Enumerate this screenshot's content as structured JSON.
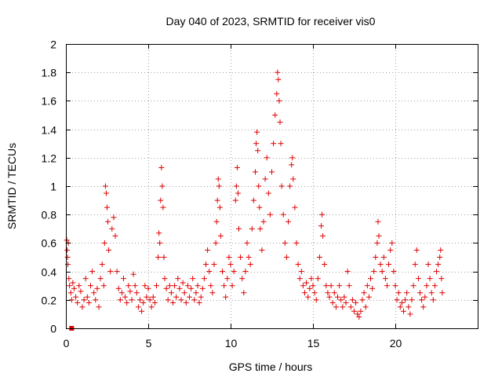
{
  "chart_data": {
    "type": "scatter",
    "title": "Day 040 of 2023, SRMTID for receiver vis0",
    "xlabel": "GPS time / hours",
    "ylabel": "SRMTID / TECUs",
    "xlim": [
      0,
      25
    ],
    "ylim": [
      0,
      2
    ],
    "xticks": [
      0,
      5,
      10,
      15,
      20
    ],
    "xtick_labels": [
      "0",
      "5",
      "10",
      "15",
      "20"
    ],
    "yticks": [
      0,
      0.2,
      0.4,
      0.6,
      0.8,
      1,
      1.2,
      1.4,
      1.6,
      1.8,
      2
    ],
    "ytick_labels": [
      "0",
      "0.2",
      "0.4",
      "0.6",
      "0.8",
      "1",
      "1.2",
      "1.4",
      "1.6",
      "1.8",
      "2"
    ],
    "grid": true,
    "marker": "+",
    "color": "#e00000",
    "series": [
      {
        "name": "vis0",
        "points": [
          [
            0.05,
            0.62
          ],
          [
            0.08,
            0.55
          ],
          [
            0.1,
            0.5
          ],
          [
            0.12,
            0.45
          ],
          [
            0.15,
            0.6
          ],
          [
            0.18,
            0.35
          ],
          [
            0.22,
            0.3
          ],
          [
            0.3,
            0.25
          ],
          [
            0.35,
            0.2
          ],
          [
            0.42,
            0.32
          ],
          [
            0.5,
            0.28
          ],
          [
            0.6,
            0.22
          ],
          [
            0.7,
            0.18
          ],
          [
            0.8,
            0.3
          ],
          [
            0.9,
            0.26
          ],
          [
            1.0,
            0.15
          ],
          [
            1.1,
            0.2
          ],
          [
            1.2,
            0.35
          ],
          [
            1.3,
            0.22
          ],
          [
            1.4,
            0.18
          ],
          [
            1.5,
            0.3
          ],
          [
            1.6,
            0.4
          ],
          [
            1.7,
            0.25
          ],
          [
            1.8,
            0.2
          ],
          [
            1.9,
            0.28
          ],
          [
            2.0,
            0.15
          ],
          [
            2.1,
            0.35
          ],
          [
            2.2,
            0.45
          ],
          [
            2.3,
            0.3
          ],
          [
            2.35,
            0.6
          ],
          [
            2.4,
            1.0
          ],
          [
            2.45,
            0.95
          ],
          [
            2.5,
            0.85
          ],
          [
            2.55,
            0.75
          ],
          [
            2.6,
            0.55
          ],
          [
            2.7,
            0.4
          ],
          [
            2.8,
            0.7
          ],
          [
            2.9,
            0.78
          ],
          [
            3.0,
            0.65
          ],
          [
            3.1,
            0.4
          ],
          [
            3.2,
            0.28
          ],
          [
            3.3,
            0.2
          ],
          [
            3.4,
            0.25
          ],
          [
            3.5,
            0.35
          ],
          [
            3.6,
            0.22
          ],
          [
            3.7,
            0.18
          ],
          [
            3.8,
            0.3
          ],
          [
            3.9,
            0.26
          ],
          [
            4.0,
            0.2
          ],
          [
            4.1,
            0.38
          ],
          [
            4.2,
            0.3
          ],
          [
            4.3,
            0.25
          ],
          [
            4.4,
            0.15
          ],
          [
            4.5,
            0.2
          ],
          [
            4.6,
            0.12
          ],
          [
            4.7,
            0.18
          ],
          [
            4.8,
            0.3
          ],
          [
            4.9,
            0.22
          ],
          [
            5.0,
            0.28
          ],
          [
            5.1,
            0.2
          ],
          [
            5.2,
            0.15
          ],
          [
            5.3,
            0.22
          ],
          [
            5.4,
            0.18
          ],
          [
            5.5,
            0.3
          ],
          [
            5.6,
            0.5
          ],
          [
            5.65,
            0.67
          ],
          [
            5.7,
            0.6
          ],
          [
            5.75,
            0.9
          ],
          [
            5.8,
            1.13
          ],
          [
            5.85,
            1.0
          ],
          [
            5.9,
            0.85
          ],
          [
            5.95,
            0.5
          ],
          [
            6.0,
            0.35
          ],
          [
            6.1,
            0.28
          ],
          [
            6.2,
            0.2
          ],
          [
            6.3,
            0.3
          ],
          [
            6.4,
            0.25
          ],
          [
            6.5,
            0.18
          ],
          [
            6.6,
            0.3
          ],
          [
            6.7,
            0.22
          ],
          [
            6.8,
            0.35
          ],
          [
            6.9,
            0.28
          ],
          [
            7.0,
            0.2
          ],
          [
            7.1,
            0.32
          ],
          [
            7.2,
            0.25
          ],
          [
            7.3,
            0.18
          ],
          [
            7.4,
            0.3
          ],
          [
            7.5,
            0.22
          ],
          [
            7.6,
            0.28
          ],
          [
            7.7,
            0.35
          ],
          [
            7.8,
            0.2
          ],
          [
            7.9,
            0.25
          ],
          [
            8.0,
            0.3
          ],
          [
            8.1,
            0.18
          ],
          [
            8.2,
            0.22
          ],
          [
            8.3,
            0.28
          ],
          [
            8.4,
            0.35
          ],
          [
            8.5,
            0.45
          ],
          [
            8.6,
            0.55
          ],
          [
            8.7,
            0.4
          ],
          [
            8.8,
            0.3
          ],
          [
            8.9,
            0.25
          ],
          [
            9.0,
            0.45
          ],
          [
            9.1,
            0.6
          ],
          [
            9.15,
            0.75
          ],
          [
            9.2,
            0.9
          ],
          [
            9.25,
            1.05
          ],
          [
            9.3,
            1.0
          ],
          [
            9.35,
            0.85
          ],
          [
            9.4,
            0.65
          ],
          [
            9.5,
            0.4
          ],
          [
            9.6,
            0.3
          ],
          [
            9.7,
            0.22
          ],
          [
            9.8,
            0.35
          ],
          [
            9.9,
            0.5
          ],
          [
            10.0,
            0.45
          ],
          [
            10.1,
            0.3
          ],
          [
            10.2,
            0.4
          ],
          [
            10.3,
            0.9
          ],
          [
            10.35,
            1.0
          ],
          [
            10.4,
            1.13
          ],
          [
            10.45,
            0.95
          ],
          [
            10.5,
            0.7
          ],
          [
            10.6,
            0.5
          ],
          [
            10.7,
            0.35
          ],
          [
            10.8,
            0.25
          ],
          [
            10.9,
            0.4
          ],
          [
            11.0,
            0.6
          ],
          [
            11.1,
            0.5
          ],
          [
            11.2,
            0.45
          ],
          [
            11.3,
            0.7
          ],
          [
            11.4,
            0.9
          ],
          [
            11.5,
            1.1
          ],
          [
            11.55,
            1.3
          ],
          [
            11.6,
            1.38
          ],
          [
            11.65,
            1.25
          ],
          [
            11.7,
            1.0
          ],
          [
            11.75,
            0.85
          ],
          [
            11.8,
            0.7
          ],
          [
            11.9,
            0.55
          ],
          [
            12.0,
            0.75
          ],
          [
            12.1,
            1.05
          ],
          [
            12.2,
            1.2
          ],
          [
            12.3,
            0.95
          ],
          [
            12.4,
            0.8
          ],
          [
            12.5,
            1.1
          ],
          [
            12.6,
            1.3
          ],
          [
            12.7,
            1.5
          ],
          [
            12.8,
            1.65
          ],
          [
            12.85,
            1.8
          ],
          [
            12.9,
            1.75
          ],
          [
            12.95,
            1.6
          ],
          [
            13.0,
            1.45
          ],
          [
            13.05,
            1.3
          ],
          [
            13.1,
            1.0
          ],
          [
            13.2,
            0.8
          ],
          [
            13.3,
            0.6
          ],
          [
            13.4,
            0.5
          ],
          [
            13.5,
            0.75
          ],
          [
            13.6,
            1.0
          ],
          [
            13.7,
            1.15
          ],
          [
            13.75,
            1.2
          ],
          [
            13.8,
            1.05
          ],
          [
            13.9,
            0.85
          ],
          [
            14.0,
            0.6
          ],
          [
            14.1,
            0.45
          ],
          [
            14.2,
            0.35
          ],
          [
            14.3,
            0.4
          ],
          [
            14.4,
            0.3
          ],
          [
            14.5,
            0.25
          ],
          [
            14.6,
            0.32
          ],
          [
            14.7,
            0.22
          ],
          [
            14.8,
            0.28
          ],
          [
            14.9,
            0.35
          ],
          [
            15.0,
            0.3
          ],
          [
            15.1,
            0.25
          ],
          [
            15.2,
            0.2
          ],
          [
            15.3,
            0.35
          ],
          [
            15.4,
            0.5
          ],
          [
            15.5,
            0.72
          ],
          [
            15.55,
            0.8
          ],
          [
            15.6,
            0.65
          ],
          [
            15.7,
            0.45
          ],
          [
            15.8,
            0.3
          ],
          [
            15.9,
            0.25
          ],
          [
            16.0,
            0.22
          ],
          [
            16.1,
            0.3
          ],
          [
            16.2,
            0.18
          ],
          [
            16.3,
            0.25
          ],
          [
            16.4,
            0.15
          ],
          [
            16.5,
            0.22
          ],
          [
            16.6,
            0.3
          ],
          [
            16.7,
            0.2
          ],
          [
            16.8,
            0.15
          ],
          [
            16.9,
            0.22
          ],
          [
            17.0,
            0.18
          ],
          [
            17.1,
            0.4
          ],
          [
            17.2,
            0.3
          ],
          [
            17.3,
            0.15
          ],
          [
            17.4,
            0.2
          ],
          [
            17.5,
            0.12
          ],
          [
            17.6,
            0.18
          ],
          [
            17.7,
            0.1
          ],
          [
            17.8,
            0.08
          ],
          [
            17.9,
            0.12
          ],
          [
            18.0,
            0.2
          ],
          [
            18.1,
            0.25
          ],
          [
            18.2,
            0.15
          ],
          [
            18.3,
            0.3
          ],
          [
            18.4,
            0.22
          ],
          [
            18.5,
            0.35
          ],
          [
            18.6,
            0.28
          ],
          [
            18.7,
            0.4
          ],
          [
            18.8,
            0.5
          ],
          [
            18.9,
            0.6
          ],
          [
            18.95,
            0.75
          ],
          [
            19.0,
            0.65
          ],
          [
            19.1,
            0.45
          ],
          [
            19.2,
            0.4
          ],
          [
            19.3,
            0.5
          ],
          [
            19.4,
            0.35
          ],
          [
            19.5,
            0.3
          ],
          [
            19.6,
            0.45
          ],
          [
            19.7,
            0.55
          ],
          [
            19.8,
            0.6
          ],
          [
            19.9,
            0.4
          ],
          [
            20.0,
            0.3
          ],
          [
            20.1,
            0.2
          ],
          [
            20.2,
            0.25
          ],
          [
            20.3,
            0.15
          ],
          [
            20.4,
            0.18
          ],
          [
            20.5,
            0.12
          ],
          [
            20.6,
            0.2
          ],
          [
            20.7,
            0.25
          ],
          [
            20.8,
            0.15
          ],
          [
            20.9,
            0.1
          ],
          [
            21.0,
            0.2
          ],
          [
            21.1,
            0.3
          ],
          [
            21.2,
            0.45
          ],
          [
            21.3,
            0.55
          ],
          [
            21.4,
            0.35
          ],
          [
            21.5,
            0.25
          ],
          [
            21.6,
            0.2
          ],
          [
            21.7,
            0.15
          ],
          [
            21.8,
            0.22
          ],
          [
            21.9,
            0.3
          ],
          [
            22.0,
            0.45
          ],
          [
            22.1,
            0.35
          ],
          [
            22.2,
            0.25
          ],
          [
            22.3,
            0.2
          ],
          [
            22.4,
            0.3
          ],
          [
            22.5,
            0.4
          ],
          [
            22.6,
            0.45
          ],
          [
            22.7,
            0.5
          ],
          [
            22.75,
            0.55
          ],
          [
            22.8,
            0.35
          ],
          [
            22.85,
            0.25
          ]
        ]
      }
    ],
    "marker_square": [
      0.35,
      0.0
    ]
  }
}
